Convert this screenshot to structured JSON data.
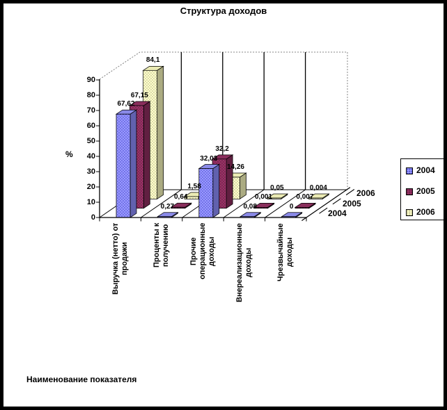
{
  "title": "Структура доходов",
  "axis": {
    "y_label": "%",
    "x_label": "Наименование показателя",
    "y_ticks": [
      "0",
      "10",
      "20",
      "30",
      "40",
      "50",
      "60",
      "70",
      "80",
      "90"
    ]
  },
  "depth_axis": {
    "labels": [
      "2004",
      "2005",
      "2006"
    ]
  },
  "legend": {
    "items": [
      {
        "label": "2004",
        "color": "#9999FF",
        "dot": "#2626B8"
      },
      {
        "label": "2005",
        "color": "#993366",
        "dot": "#470E2F"
      },
      {
        "label": "2006",
        "color": "#FFFFCC",
        "dot": "#8F8F62"
      }
    ]
  },
  "chart_data": {
    "type": "bar",
    "projection": "3d",
    "title": "Структура доходов",
    "xlabel": "Наименование показателя",
    "ylabel": "%",
    "ylim": [
      0,
      90
    ],
    "grid": false,
    "legend_position": "right",
    "categories": [
      "Выручка (нетто) от продажи",
      "Проценты к получению",
      "Прочие операционные доходы",
      "Внереализационные доходы",
      "Чрезвычайные доходы"
    ],
    "category_lines": [
      [
        "Выручка (нетто) от",
        "продажи"
      ],
      [
        "Проценты к",
        "получению"
      ],
      [
        "Прочие",
        "операционные",
        "доходы"
      ],
      [
        "Внереализационные",
        "доходы"
      ],
      [
        "Чрезвычайные",
        "доходы"
      ]
    ],
    "series": [
      {
        "name": "2004",
        "color": "#9999FF",
        "dot_color": "#2626B8",
        "top_color": "#8A8AE8",
        "side_color": "#6161AE",
        "values": [
          67.62,
          0.27,
          32.03,
          0.08,
          0
        ],
        "labels": [
          "67,62",
          "0,27",
          "32,03",
          "0,08",
          "0"
        ]
      },
      {
        "name": "2005",
        "color": "#993366",
        "dot_color": "#470E2F",
        "top_color": "#8A2E5C",
        "side_color": "#611F41",
        "values": [
          67.15,
          0.64,
          32.2,
          0.001,
          0.007
        ],
        "labels": [
          "67,15",
          "0,64",
          "32,2",
          "0,001",
          "0,007"
        ]
      },
      {
        "name": "2006",
        "color": "#FFFFCC",
        "dot_color": "#8F8F62",
        "top_color": "#EBEBB4",
        "side_color": "#ABAB82",
        "values": [
          84.1,
          1.58,
          14.26,
          0.05,
          0.004
        ],
        "labels": [
          "84,1",
          "1,58",
          "14,26",
          "0,05",
          "0,004"
        ]
      }
    ]
  }
}
